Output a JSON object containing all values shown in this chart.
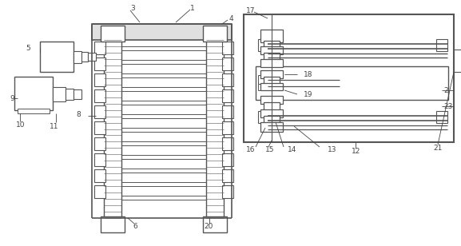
{
  "line_color": "#555555",
  "label_color": "#444444",
  "label_fontsize": 6.5,
  "fig_width": 5.77,
  "fig_height": 3.08
}
